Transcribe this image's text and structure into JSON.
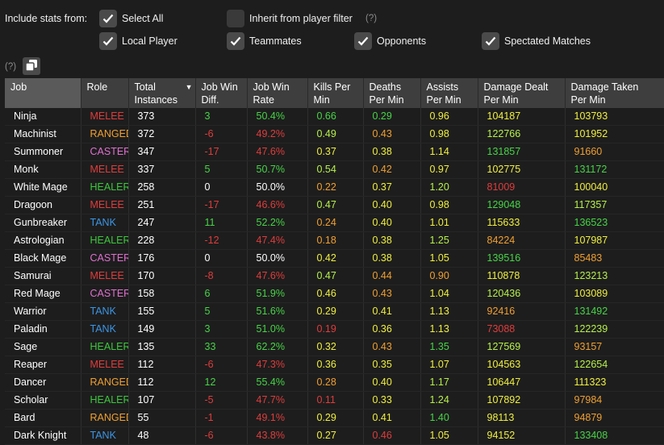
{
  "filters": {
    "include_label": "Include stats from:",
    "select_all": {
      "label": "Select All",
      "checked": true
    },
    "inherit": {
      "label": "Inherit from player filter",
      "checked": false
    },
    "help_mark": "(?)",
    "local_player": {
      "label": "Local Player",
      "checked": true
    },
    "teammates": {
      "label": "Teammates",
      "checked": true
    },
    "opponents": {
      "label": "Opponents",
      "checked": true
    },
    "spectated": {
      "label": "Spectated Matches",
      "checked": true
    }
  },
  "toolbar": {
    "help_mark": "(?)",
    "copy_icon": "copy-icon"
  },
  "colors": {
    "melee": "#e03c3c",
    "ranged": "#f0a030",
    "caster": "#e070d0",
    "healer": "#3cc83c",
    "tank": "#3c96e6",
    "header_bg": "#3e3e3e",
    "background": "#1d1d1d"
  },
  "table": {
    "headers": {
      "job": "Job",
      "role": "Role",
      "total_1": "Total",
      "total_2": "Instances",
      "diff_1": "Job Win",
      "diff_2": "Diff.",
      "rate_1": "Job Win",
      "rate_2": "Rate",
      "kills_1": "Kills Per",
      "kills_2": "Min",
      "deaths_1": "Deaths",
      "deaths_2": "Per Min",
      "assists_1": "Assists",
      "assists_2": "Per Min",
      "dealt_1": "Damage Dealt",
      "dealt_2": "Per Min",
      "taken_1": "Damage Taken",
      "taken_2": "Per Min"
    },
    "sort_indicator": "▼",
    "rows": [
      {
        "job": "Ninja",
        "role": "MELEE",
        "total": "373",
        "diff": "3",
        "rate": "50.4%",
        "kills": "0.66",
        "deaths": "0.29",
        "assists": "0.96",
        "dealt": "104187",
        "taken": "103793"
      },
      {
        "job": "Machinist",
        "role": "RANGED",
        "total": "372",
        "diff": "-6",
        "rate": "49.2%",
        "kills": "0.49",
        "deaths": "0.43",
        "assists": "0.98",
        "dealt": "122766",
        "taken": "101952"
      },
      {
        "job": "Summoner",
        "role": "CASTER",
        "total": "347",
        "diff": "-17",
        "rate": "47.6%",
        "kills": "0.37",
        "deaths": "0.38",
        "assists": "1.14",
        "dealt": "131857",
        "taken": "91660"
      },
      {
        "job": "Monk",
        "role": "MELEE",
        "total": "337",
        "diff": "5",
        "rate": "50.7%",
        "kills": "0.54",
        "deaths": "0.42",
        "assists": "0.97",
        "dealt": "102775",
        "taken": "131172"
      },
      {
        "job": "White Mage",
        "role": "HEALER",
        "total": "258",
        "diff": "0",
        "rate": "50.0%",
        "kills": "0.22",
        "deaths": "0.37",
        "assists": "1.20",
        "dealt": "81009",
        "taken": "100040"
      },
      {
        "job": "Dragoon",
        "role": "MELEE",
        "total": "251",
        "diff": "-17",
        "rate": "46.6%",
        "kills": "0.47",
        "deaths": "0.40",
        "assists": "0.98",
        "dealt": "129048",
        "taken": "117357"
      },
      {
        "job": "Gunbreaker",
        "role": "TANK",
        "total": "247",
        "diff": "11",
        "rate": "52.2%",
        "kills": "0.24",
        "deaths": "0.40",
        "assists": "1.01",
        "dealt": "115633",
        "taken": "136523"
      },
      {
        "job": "Astrologian",
        "role": "HEALER",
        "total": "228",
        "diff": "-12",
        "rate": "47.4%",
        "kills": "0.18",
        "deaths": "0.38",
        "assists": "1.25",
        "dealt": "84224",
        "taken": "107987"
      },
      {
        "job": "Black Mage",
        "role": "CASTER",
        "total": "176",
        "diff": "0",
        "rate": "50.0%",
        "kills": "0.42",
        "deaths": "0.38",
        "assists": "1.05",
        "dealt": "139516",
        "taken": "85483"
      },
      {
        "job": "Samurai",
        "role": "MELEE",
        "total": "170",
        "diff": "-8",
        "rate": "47.6%",
        "kills": "0.47",
        "deaths": "0.44",
        "assists": "0.90",
        "dealt": "110878",
        "taken": "123213"
      },
      {
        "job": "Red Mage",
        "role": "CASTER",
        "total": "158",
        "diff": "6",
        "rate": "51.9%",
        "kills": "0.46",
        "deaths": "0.43",
        "assists": "1.04",
        "dealt": "120436",
        "taken": "103089"
      },
      {
        "job": "Warrior",
        "role": "TANK",
        "total": "155",
        "diff": "5",
        "rate": "51.6%",
        "kills": "0.29",
        "deaths": "0.41",
        "assists": "1.13",
        "dealt": "92416",
        "taken": "131492"
      },
      {
        "job": "Paladin",
        "role": "TANK",
        "total": "149",
        "diff": "3",
        "rate": "51.0%",
        "kills": "0.19",
        "deaths": "0.36",
        "assists": "1.13",
        "dealt": "73088",
        "taken": "122239"
      },
      {
        "job": "Sage",
        "role": "HEALER",
        "total": "135",
        "diff": "33",
        "rate": "62.2%",
        "kills": "0.32",
        "deaths": "0.43",
        "assists": "1.35",
        "dealt": "127569",
        "taken": "93157"
      },
      {
        "job": "Reaper",
        "role": "MELEE",
        "total": "112",
        "diff": "-6",
        "rate": "47.3%",
        "kills": "0.36",
        "deaths": "0.35",
        "assists": "1.07",
        "dealt": "104563",
        "taken": "122654"
      },
      {
        "job": "Dancer",
        "role": "RANGED",
        "total": "112",
        "diff": "12",
        "rate": "55.4%",
        "kills": "0.28",
        "deaths": "0.40",
        "assists": "1.17",
        "dealt": "106447",
        "taken": "111323"
      },
      {
        "job": "Scholar",
        "role": "HEALER",
        "total": "107",
        "diff": "-5",
        "rate": "47.7%",
        "kills": "0.11",
        "deaths": "0.33",
        "assists": "1.24",
        "dealt": "107892",
        "taken": "97984"
      },
      {
        "job": "Bard",
        "role": "RANGED",
        "total": "55",
        "diff": "-1",
        "rate": "49.1%",
        "kills": "0.29",
        "deaths": "0.41",
        "assists": "1.40",
        "dealt": "98113",
        "taken": "94879"
      },
      {
        "job": "Dark Knight",
        "role": "TANK",
        "total": "48",
        "diff": "-6",
        "rate": "43.8%",
        "kills": "0.27",
        "deaths": "0.46",
        "assists": "1.05",
        "dealt": "94152",
        "taken": "133408"
      }
    ],
    "cell_colors": [
      {
        "diff": "g",
        "rate": "g",
        "kills": "g",
        "deaths": "g",
        "assists": "y",
        "dealt": "y",
        "taken": "y"
      },
      {
        "diff": "r",
        "rate": "r",
        "kills": "lg",
        "deaths": "o",
        "assists": "y",
        "dealt": "lg",
        "taken": "y"
      },
      {
        "diff": "r",
        "rate": "r",
        "kills": "y",
        "deaths": "y",
        "assists": "y",
        "dealt": "g",
        "taken": "o"
      },
      {
        "diff": "g",
        "rate": "g",
        "kills": "lg",
        "deaths": "o",
        "assists": "y",
        "dealt": "y",
        "taken": "g"
      },
      {
        "diff": "w",
        "rate": "w",
        "kills": "o",
        "deaths": "y",
        "assists": "lg",
        "dealt": "r",
        "taken": "y"
      },
      {
        "diff": "r",
        "rate": "r",
        "kills": "lg",
        "deaths": "y",
        "assists": "y",
        "dealt": "g",
        "taken": "lg"
      },
      {
        "diff": "g",
        "rate": "g",
        "kills": "o",
        "deaths": "y",
        "assists": "y",
        "dealt": "y",
        "taken": "g"
      },
      {
        "diff": "r",
        "rate": "r",
        "kills": "o",
        "deaths": "y",
        "assists": "lg",
        "dealt": "o",
        "taken": "y"
      },
      {
        "diff": "w",
        "rate": "w",
        "kills": "y",
        "deaths": "y",
        "assists": "y",
        "dealt": "g",
        "taken": "o"
      },
      {
        "diff": "r",
        "rate": "r",
        "kills": "lg",
        "deaths": "o",
        "assists": "o",
        "dealt": "y",
        "taken": "lg"
      },
      {
        "diff": "g",
        "rate": "g",
        "kills": "y",
        "deaths": "o",
        "assists": "y",
        "dealt": "lg",
        "taken": "y"
      },
      {
        "diff": "g",
        "rate": "g",
        "kills": "y",
        "deaths": "y",
        "assists": "y",
        "dealt": "o",
        "taken": "g"
      },
      {
        "diff": "g",
        "rate": "g",
        "kills": "r",
        "deaths": "y",
        "assists": "y",
        "dealt": "r",
        "taken": "lg"
      },
      {
        "diff": "g",
        "rate": "g",
        "kills": "y",
        "deaths": "o",
        "assists": "g",
        "dealt": "lg",
        "taken": "o"
      },
      {
        "diff": "r",
        "rate": "r",
        "kills": "y",
        "deaths": "y",
        "assists": "y",
        "dealt": "y",
        "taken": "lg"
      },
      {
        "diff": "g",
        "rate": "g",
        "kills": "o",
        "deaths": "y",
        "assists": "lg",
        "dealt": "y",
        "taken": "y"
      },
      {
        "diff": "r",
        "rate": "r",
        "kills": "r",
        "deaths": "y",
        "assists": "lg",
        "dealt": "y",
        "taken": "o"
      },
      {
        "diff": "r",
        "rate": "r",
        "kills": "y",
        "deaths": "y",
        "assists": "g",
        "dealt": "y",
        "taken": "o"
      },
      {
        "diff": "r",
        "rate": "r",
        "kills": "y",
        "deaths": "r",
        "assists": "y",
        "dealt": "y",
        "taken": "g"
      }
    ]
  }
}
